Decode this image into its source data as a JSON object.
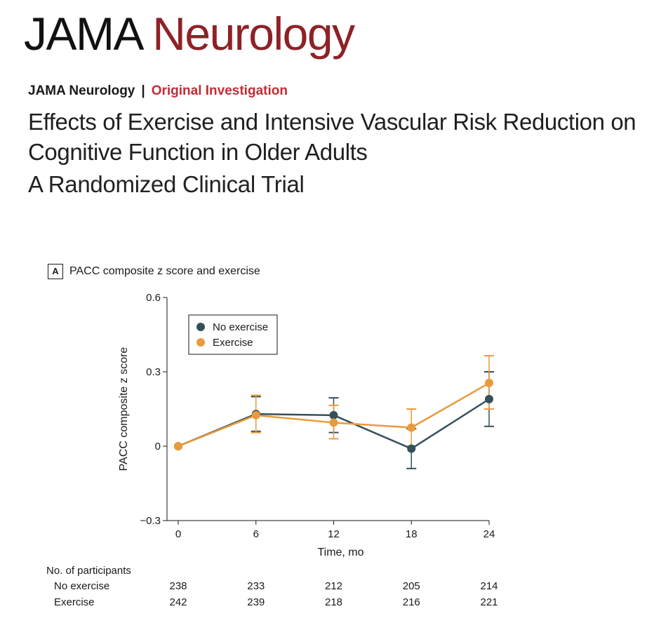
{
  "header": {
    "brand_part1": "JAMA",
    "brand_part2": "Neurology",
    "journal": "JAMA Neurology",
    "separator": "|",
    "article_type": "Original Investigation",
    "title": "Effects of Exercise and Intensive Vascular Risk Reduction on Cognitive Function in Older Adults",
    "subtitle": "A Randomized Clinical Trial"
  },
  "panel": {
    "letter": "A",
    "title": "PACC composite z score and exercise"
  },
  "colors": {
    "no_exercise": "#34505a",
    "exercise": "#e99a3c",
    "brand_red": "#8e2226"
  },
  "chart_data": {
    "type": "line",
    "title": "PACC composite z score and exercise",
    "xlabel": "Time, mo",
    "ylabel": "PACC composite z score",
    "x": [
      0,
      6,
      12,
      18,
      24
    ],
    "x_tick_labels": [
      "0",
      "6",
      "12",
      "18",
      "24"
    ],
    "ylim": [
      -0.3,
      0.6
    ],
    "y_ticks": [
      -0.3,
      0,
      0.3,
      0.6
    ],
    "y_tick_labels": [
      "−0.3",
      "0",
      "0.3",
      "0.6"
    ],
    "legend_placement": "top-left",
    "series": [
      {
        "name": "No exercise",
        "color": "#34505a",
        "values": [
          0,
          0.13,
          0.125,
          -0.01,
          0.19
        ],
        "lower": [
          0,
          0.06,
          0.055,
          -0.09,
          0.08
        ],
        "upper": [
          0,
          0.2,
          0.195,
          0.07,
          0.3
        ]
      },
      {
        "name": "Exercise",
        "color": "#e99a3c",
        "values": [
          0,
          0.125,
          0.095,
          0.075,
          0.255
        ],
        "lower": [
          0,
          0.055,
          0.03,
          0.0,
          0.15
        ],
        "upper": [
          0,
          0.205,
          0.165,
          0.15,
          0.365
        ]
      }
    ],
    "participants": {
      "header": "No. of participants",
      "rows": [
        {
          "label": "No exercise",
          "counts": [
            "238",
            "233",
            "212",
            "205",
            "214"
          ]
        },
        {
          "label": "Exercise",
          "counts": [
            "242",
            "239",
            "218",
            "216",
            "221"
          ]
        }
      ]
    }
  }
}
